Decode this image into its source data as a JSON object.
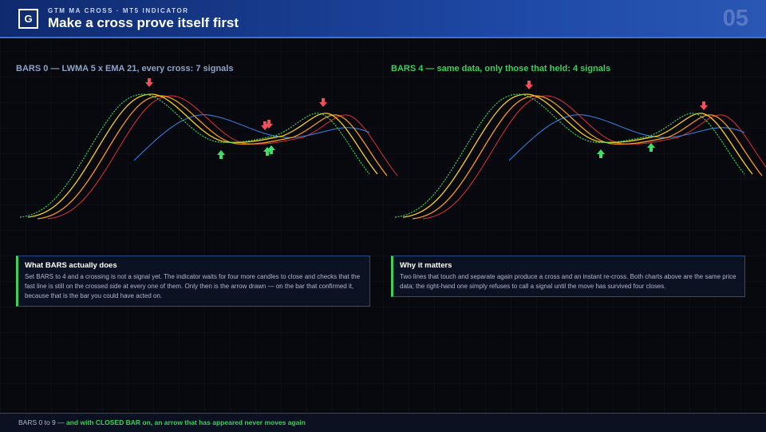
{
  "header": {
    "logo": "G",
    "kicker": "GTM MA CROSS · MT5 INDICATOR",
    "title": "Make a cross prove itself first",
    "slide_number": "05"
  },
  "panels": [
    {
      "title": "BARS 0 — LWMA 5 x EMA 21, every cross: 7 signals",
      "note_title": "What BARS actually does",
      "note_text": "Set BARS to 4 and a crossing is not a signal yet. The indicator waits for four more candles to close and checks that the fast line is still on the crossed side at every one of them. Only then is the arrow drawn — on the bar that confirmed it, because that is the bar you could have acted on."
    },
    {
      "title": "BARS 4 — same data, only those that held: 4 signals",
      "note_title": "Why it matters",
      "note_text": "Two lines that touch and separate again produce a cross and an instant re-cross. Both charts above are the same price data; the right-hand one simply refuses to call a signal until the move has survived four closes."
    }
  ],
  "footer": {
    "lead": "BARS 0 to 9 —",
    "highlight": "and with CLOSED BAR on, an arrow that has appeared never moves again"
  }
}
